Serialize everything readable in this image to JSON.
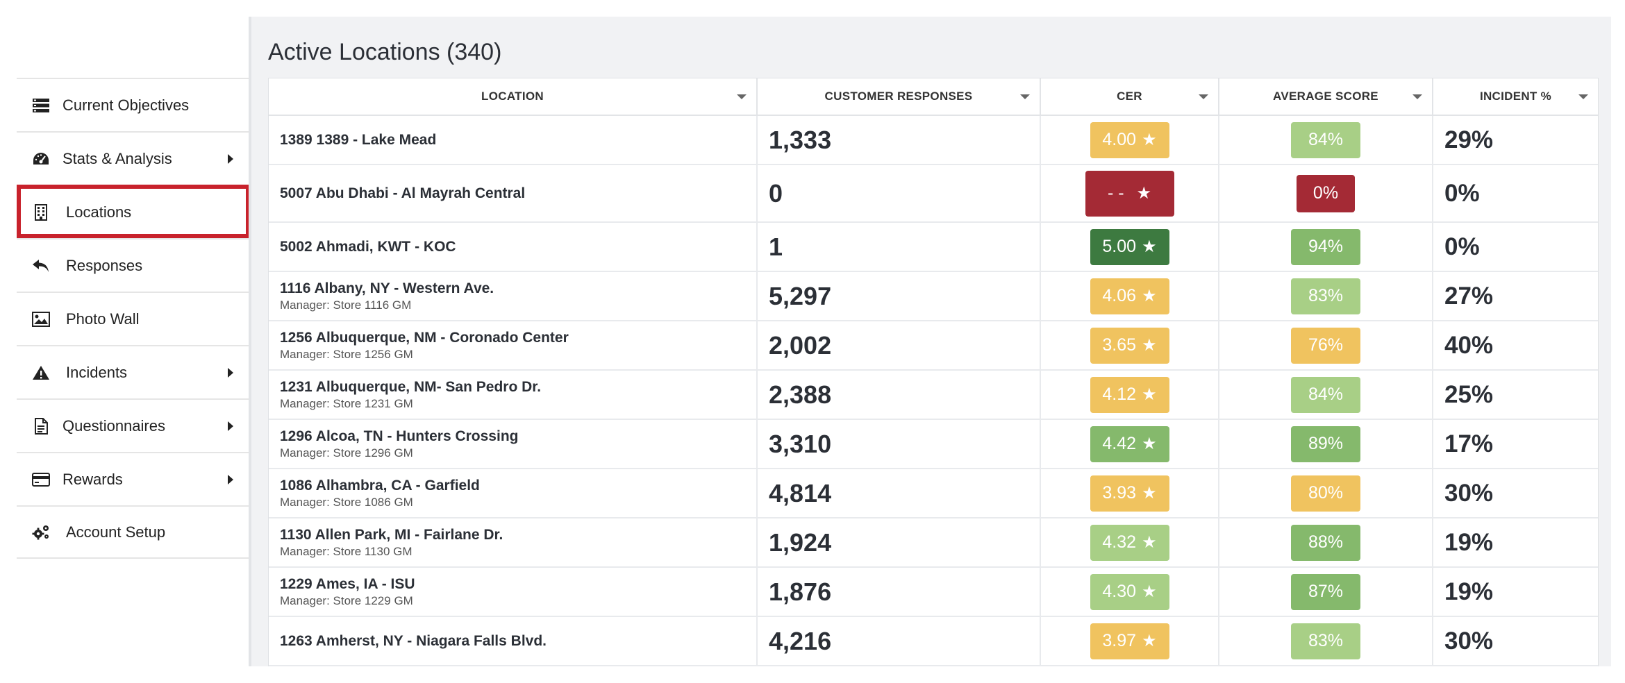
{
  "sidebar": {
    "items": [
      {
        "name": "nav-current-objectives",
        "icon": "list-icon",
        "label": "Current Objectives",
        "submenu": false
      },
      {
        "name": "nav-stats-analysis",
        "icon": "dashboard-icon",
        "label": "Stats & Analysis",
        "submenu": true
      },
      {
        "name": "nav-locations",
        "icon": "building-icon",
        "label": "Locations",
        "submenu": false,
        "active": true
      },
      {
        "name": "nav-responses",
        "icon": "reply-icon",
        "label": "Responses",
        "submenu": false
      },
      {
        "name": "nav-photo-wall",
        "icon": "image-icon",
        "label": "Photo Wall",
        "submenu": false
      },
      {
        "name": "nav-incidents",
        "icon": "warning-icon",
        "label": "Incidents",
        "submenu": true
      },
      {
        "name": "nav-questionnaires",
        "icon": "document-icon",
        "label": "Questionnaires",
        "submenu": true
      },
      {
        "name": "nav-rewards",
        "icon": "credit-card-icon",
        "label": "Rewards",
        "submenu": true
      },
      {
        "name": "nav-account-setup",
        "icon": "gears-icon",
        "label": "Account Setup",
        "submenu": false
      }
    ]
  },
  "main": {
    "title": "Active Locations (340)",
    "columns": [
      "LOCATION",
      "CUSTOMER RESPONSES",
      "CER",
      "AVERAGE SCORE",
      "INCIDENT %"
    ],
    "rows": [
      {
        "location": "1389 1389 - Lake Mead",
        "manager": "",
        "responses": "1,333",
        "cer": "4.00",
        "cer_color": "#f0c35f",
        "score": "84%",
        "score_color": "#a8cf86",
        "incident": "29%"
      },
      {
        "location": "5007 Abu Dhabi - Al Mayrah Central",
        "manager": "",
        "responses": "0",
        "cer": "- -",
        "cer_color": "#a42a35",
        "score": "0%",
        "score_color": "#a42a35",
        "incident": "0%"
      },
      {
        "location": "5002 Ahmadi, KWT - KOC",
        "manager": "",
        "responses": "1",
        "cer": "5.00",
        "cer_color": "#3d7a40",
        "score": "94%",
        "score_color": "#85b96c",
        "incident": "0%"
      },
      {
        "location": "1116 Albany, NY - Western Ave.",
        "manager": "Manager: Store 1116 GM",
        "responses": "5,297",
        "cer": "4.06",
        "cer_color": "#f0c35f",
        "score": "83%",
        "score_color": "#a8cf86",
        "incident": "27%"
      },
      {
        "location": "1256 Albuquerque, NM - Coronado Center",
        "manager": "Manager: Store 1256 GM",
        "responses": "2,002",
        "cer": "3.65",
        "cer_color": "#f0c35f",
        "score": "76%",
        "score_color": "#f0c35f",
        "incident": "40%"
      },
      {
        "location": "1231 Albuquerque, NM- San Pedro Dr.",
        "manager": "Manager: Store 1231 GM",
        "responses": "2,388",
        "cer": "4.12",
        "cer_color": "#f0c35f",
        "score": "84%",
        "score_color": "#a8cf86",
        "incident": "25%"
      },
      {
        "location": "1296 Alcoa, TN - Hunters Crossing",
        "manager": "Manager: Store 1296 GM",
        "responses": "3,310",
        "cer": "4.42",
        "cer_color": "#85b96c",
        "score": "89%",
        "score_color": "#85b96c",
        "incident": "17%"
      },
      {
        "location": "1086 Alhambra, CA - Garfield",
        "manager": "Manager: Store 1086 GM",
        "responses": "4,814",
        "cer": "3.93",
        "cer_color": "#f0c35f",
        "score": "80%",
        "score_color": "#f0c35f",
        "incident": "30%"
      },
      {
        "location": "1130 Allen Park, MI - Fairlane Dr.",
        "manager": "Manager: Store 1130 GM",
        "responses": "1,924",
        "cer": "4.32",
        "cer_color": "#a8cf86",
        "score": "88%",
        "score_color": "#85b96c",
        "incident": "19%"
      },
      {
        "location": "1229 Ames, IA - ISU",
        "manager": "Manager: Store 1229 GM",
        "responses": "1,876",
        "cer": "4.30",
        "cer_color": "#a8cf86",
        "score": "87%",
        "score_color": "#85b96c",
        "incident": "19%"
      },
      {
        "location": "1263 Amherst, NY - Niagara Falls Blvd.",
        "manager": "",
        "responses": "4,216",
        "cer": "3.97",
        "cer_color": "#f0c35f",
        "score": "83%",
        "score_color": "#a8cf86",
        "incident": "30%"
      }
    ]
  }
}
